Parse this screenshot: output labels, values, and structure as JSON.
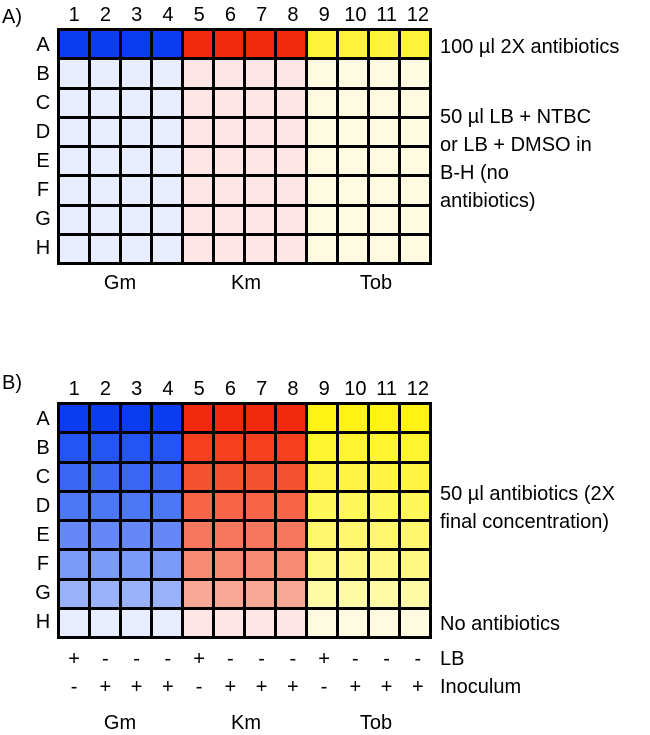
{
  "panel_a": {
    "letter": "A)",
    "columns": [
      "1",
      "2",
      "3",
      "4",
      "5",
      "6",
      "7",
      "8",
      "9",
      "10",
      "11",
      "12"
    ],
    "rows": [
      "A",
      "B",
      "C",
      "D",
      "E",
      "F",
      "G",
      "H"
    ],
    "note_top": "100 µl 2X antibiotics",
    "note_middle": "50 µl LB + NTBC\nor LB + DMSO in\nB-H (no\nantibiotics)",
    "groups": [
      "Gm",
      "Km",
      "Tob"
    ],
    "colors": {
      "blue_full": "#0b3cf0",
      "red_full": "#f22a0d",
      "yellow_full": "#fff23a",
      "blue_light": "#e8eeff",
      "red_light": "#ffe6e6",
      "yellow_light": "#fffbe0"
    }
  },
  "panel_b": {
    "letter": "B)",
    "columns": [
      "1",
      "2",
      "3",
      "4",
      "5",
      "6",
      "7",
      "8",
      "9",
      "10",
      "11",
      "12"
    ],
    "rows": [
      "A",
      "B",
      "C",
      "D",
      "E",
      "F",
      "G",
      "H"
    ],
    "note_middle": "50 µl antibiotics (2X\nfinal concentration)",
    "note_bottom": "No antibiotics",
    "lb_label": "LB",
    "inoculum_label": "Inoculum",
    "lb_signs": [
      "+",
      "-",
      "-",
      "-",
      "+",
      "-",
      "-",
      "-",
      "+",
      "-",
      "-",
      "-"
    ],
    "inoculum_signs": [
      "-",
      "+",
      "+",
      "+",
      "-",
      "+",
      "+",
      "+",
      "-",
      "+",
      "+",
      "+"
    ],
    "groups": [
      "Gm",
      "Km",
      "Tob"
    ],
    "gradients": {
      "blue": [
        "#0b3cf0",
        "#2454f2",
        "#3a66f3",
        "#4d78f5",
        "#6688f6",
        "#7c9af7",
        "#9ab2fa",
        "#e8eeff"
      ],
      "red": [
        "#f22a0d",
        "#f4401e",
        "#f55232",
        "#f66548",
        "#f7785e",
        "#f88b75",
        "#f9a898",
        "#ffe6e6"
      ],
      "yellow": [
        "#fff215",
        "#fff430",
        "#fff545",
        "#fff65a",
        "#fff770",
        "#fff885",
        "#fffaa5",
        "#fffbe0"
      ]
    }
  }
}
